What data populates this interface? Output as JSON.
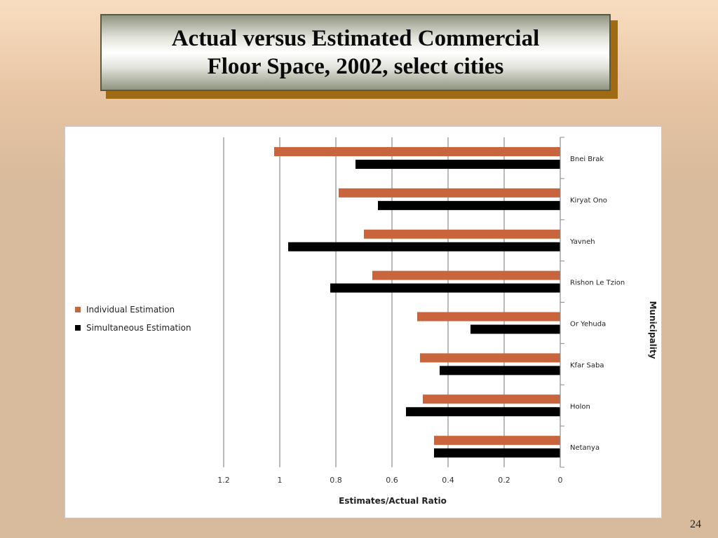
{
  "slide": {
    "title_line1": "Actual versus Estimated Commercial",
    "title_line2": "Floor Space, 2002, select cities",
    "page_number": "24"
  },
  "colors": {
    "individual": "#c8653c",
    "simultaneous": "#000000"
  },
  "chart_data": {
    "type": "bar",
    "orientation": "horizontal",
    "x_axis_reversed": true,
    "categories": [
      "Bnei Brak",
      "Kiryat Ono",
      "Yavneh",
      "Rishon Le Tzion",
      "Or Yehuda",
      "Kfar Saba",
      "Holon",
      "Netanya"
    ],
    "series": [
      {
        "name": "Individual Estimation",
        "values": [
          1.02,
          0.79,
          0.7,
          0.67,
          0.51,
          0.5,
          0.49,
          0.45
        ]
      },
      {
        "name": "Simultaneous Estimation",
        "values": [
          0.73,
          0.65,
          0.97,
          0.82,
          0.32,
          0.43,
          0.55,
          0.45
        ]
      }
    ],
    "xlabel": "Estimates/Actual Ratio",
    "ylabel": "Municipality",
    "xlim": [
      0,
      1.2
    ],
    "ticks": [
      "1.2",
      "1",
      "0.8",
      "0.6",
      "0.4",
      "0.2",
      "0"
    ],
    "grid": "vertical",
    "legend_position": "left"
  }
}
